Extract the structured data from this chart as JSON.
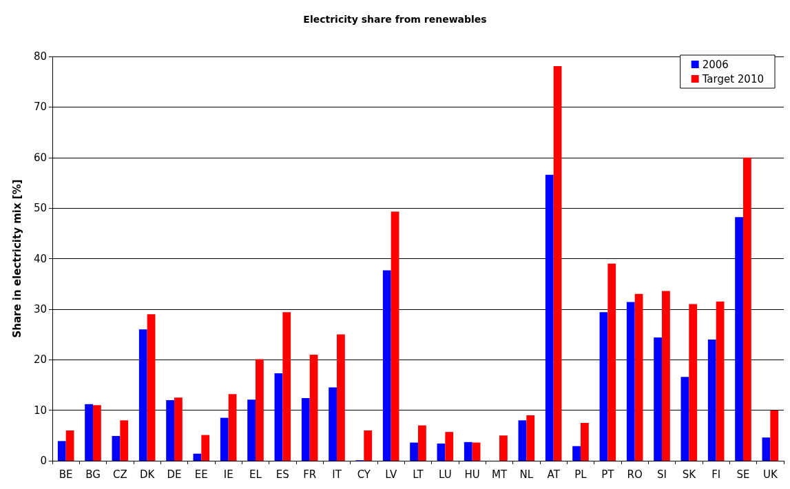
{
  "chart_data": {
    "type": "bar",
    "title": "Electricity share from renewables",
    "ylabel": "Share in electricity mix [%]",
    "categories": [
      "BE",
      "BG",
      "CZ",
      "DK",
      "DE",
      "EE",
      "IE",
      "EL",
      "ES",
      "FR",
      "IT",
      "CY",
      "LV",
      "LT",
      "LU",
      "HU",
      "MT",
      "NL",
      "AT",
      "PL",
      "PT",
      "RO",
      "SI",
      "SK",
      "FI",
      "SE",
      "UK"
    ],
    "series": [
      {
        "name": "2006",
        "color": "#0000ff",
        "values": [
          3.9,
          11.2,
          4.9,
          26,
          12,
          1.4,
          8.5,
          12.1,
          17.3,
          12.4,
          14.5,
          0.1,
          37.7,
          3.6,
          3.4,
          3.7,
          0,
          8,
          56.6,
          2.9,
          29.4,
          31.4,
          24.4,
          16.6,
          24,
          48.2,
          4.6
        ]
      },
      {
        "name": "Target 2010",
        "color": "#ff0000",
        "values": [
          6,
          11,
          8,
          29,
          12.5,
          5.1,
          13.2,
          20.1,
          29.4,
          21,
          25,
          6,
          49.3,
          7,
          5.7,
          3.6,
          5,
          9,
          78.1,
          7.5,
          39,
          33,
          33.6,
          31,
          31.5,
          60,
          10
        ]
      }
    ],
    "ylim": [
      0,
      80
    ],
    "yticks": [
      0,
      10,
      20,
      30,
      40,
      50,
      60,
      70,
      80
    ],
    "grid": "y",
    "legend": "top right"
  }
}
